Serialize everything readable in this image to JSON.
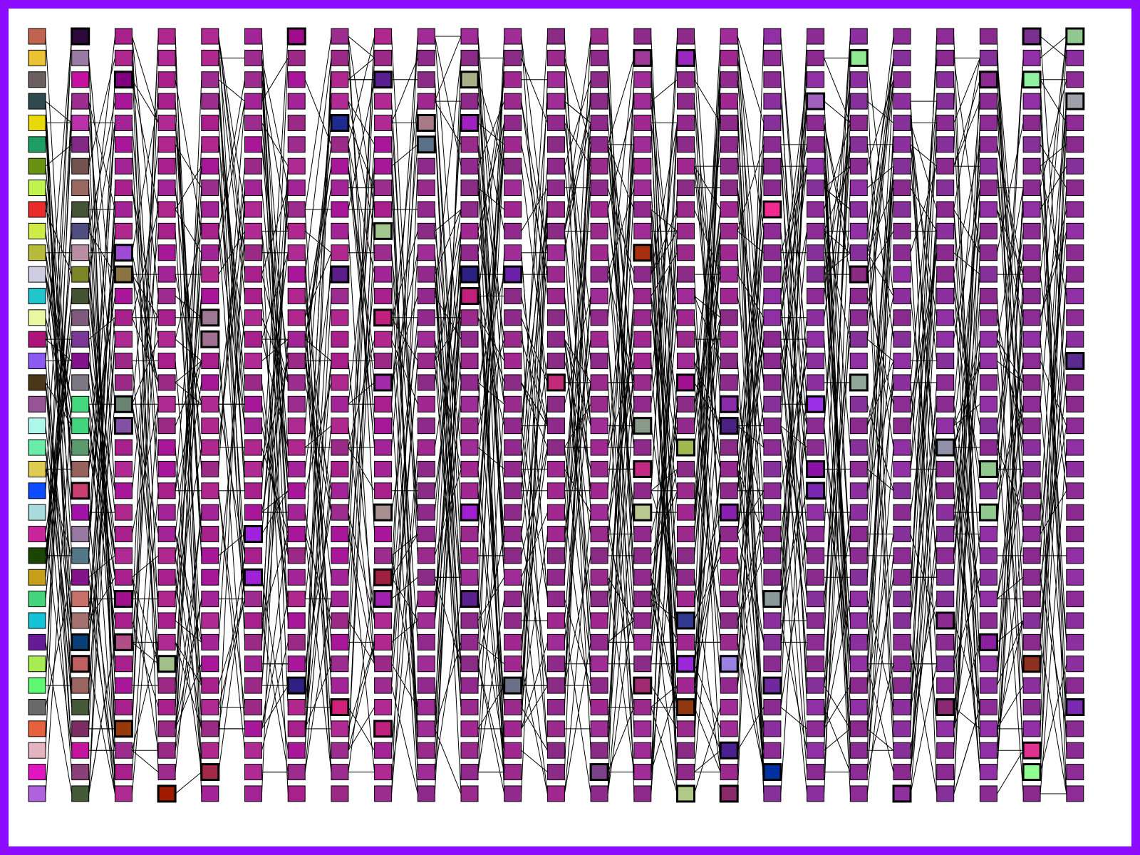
{
  "diagram": {
    "frame_color": "#8b0cff",
    "background": "#ffffff",
    "edge_color": "#000000",
    "column_count": 25,
    "row_count": 36,
    "columns": [
      {
        "colors": [
          "#c0634f",
          "#ecc235",
          "#6b5e5e",
          "#2f4a4e",
          "#e8da0a",
          "#1e9e62",
          "#6a9212",
          "#c2f44e",
          "#ea2b2c",
          "#cfeb46",
          "#b8bb3a",
          "#cecde2",
          "#20c6cc",
          "#e9f9a2",
          "#ad1479",
          "#8c5af0",
          "#4a3619",
          "#975396",
          "#aef7ea",
          "#68eca8",
          "#e0cb52",
          "#0e4cff",
          "#a9dbdc",
          "#c8249c",
          "#1b4504",
          "#c69f17",
          "#44d47b",
          "#14c3d6",
          "#661a96",
          "#a7ec52",
          "#5ff873",
          "#6a6868",
          "#e8613e",
          "#e3b4c0",
          "#e216c0",
          "#b061dd"
        ]
      },
      {
        "colors": [
          "#2e0a3a",
          "#977ba2",
          "#c510a0",
          "#9c2c8e",
          "#b932aa",
          "#832985",
          "#73524f",
          "#986861",
          "#455436",
          "#504d80",
          "#b98ea4",
          "#7d8529",
          "#455234",
          "#7e5b7d",
          "#7b3896",
          "#83148b",
          "#7b7882",
          "#44d67b",
          "#41d67d",
          "#5b9a6d",
          "#98625c",
          "#c93f72",
          "#a012a8",
          "#9678a0",
          "#537786",
          "#85148a",
          "#c8706a",
          "#a57070",
          "#093f77",
          "#bf6060",
          "#9a6460",
          "#455a39",
          "#7b2d64",
          "#c5159e",
          "#8a4078",
          "#455a39"
        ]
      }
    ],
    "generic_palette": {
      "early": [
        "#a8169a",
        "#a22496",
        "#b0288e",
        "#9c2c8e",
        "#a8208c",
        "#b02a94",
        "#9a2a86"
      ],
      "middle": [
        "#9a2a8c",
        "#8e2a8a",
        "#a02890",
        "#8a2c86",
        "#a02c98",
        "#922a8e"
      ],
      "late": [
        "#8e2c96",
        "#8a2c92",
        "#8c30a0",
        "#86309a",
        "#9030a4",
        "#8a2a8e"
      ]
    },
    "highlighted_cells": [
      {
        "col": 1,
        "row": 0,
        "color": "#2e0a3a"
      },
      {
        "col": 1,
        "row": 21,
        "color": "#c93f72"
      },
      {
        "col": 1,
        "row": 28,
        "color": "#093f77"
      },
      {
        "col": 1,
        "row": 29,
        "color": "#bf6060"
      },
      {
        "col": 2,
        "row": 2,
        "color": "#800080"
      },
      {
        "col": 2,
        "row": 10,
        "color": "#9e4bd4"
      },
      {
        "col": 2,
        "row": 11,
        "color": "#8a7444"
      },
      {
        "col": 2,
        "row": 17,
        "color": "#6a8370"
      },
      {
        "col": 2,
        "row": 18,
        "color": "#8450a6"
      },
      {
        "col": 2,
        "row": 26,
        "color": "#a0108e"
      },
      {
        "col": 2,
        "row": 28,
        "color": "#b04e86"
      },
      {
        "col": 2,
        "row": 32,
        "color": "#963a0c"
      },
      {
        "col": 3,
        "row": 29,
        "color": "#a2c08a"
      },
      {
        "col": 3,
        "row": 35,
        "color": "#a01a00"
      },
      {
        "col": 4,
        "row": 13,
        "color": "#9e7894"
      },
      {
        "col": 4,
        "row": 14,
        "color": "#a07090"
      },
      {
        "col": 4,
        "row": 34,
        "color": "#a02a48"
      },
      {
        "col": 5,
        "row": 23,
        "color": "#a020e0"
      },
      {
        "col": 5,
        "row": 25,
        "color": "#a022d8"
      },
      {
        "col": 6,
        "row": 0,
        "color": "#a00c8c"
      },
      {
        "col": 6,
        "row": 30,
        "color": "#302080"
      },
      {
        "col": 7,
        "row": 4,
        "color": "#1e2a8e"
      },
      {
        "col": 7,
        "row": 11,
        "color": "#5a1e8a"
      },
      {
        "col": 7,
        "row": 31,
        "color": "#d0207a"
      },
      {
        "col": 8,
        "row": 2,
        "color": "#5a2090"
      },
      {
        "col": 8,
        "row": 9,
        "color": "#a2c890"
      },
      {
        "col": 8,
        "row": 13,
        "color": "#c0207e"
      },
      {
        "col": 8,
        "row": 16,
        "color": "#a02aa8"
      },
      {
        "col": 8,
        "row": 22,
        "color": "#a89090"
      },
      {
        "col": 8,
        "row": 25,
        "color": "#a02040"
      },
      {
        "col": 8,
        "row": 26,
        "color": "#a020b0"
      },
      {
        "col": 8,
        "row": 32,
        "color": "#c0207e"
      },
      {
        "col": 9,
        "row": 4,
        "color": "#a87a88"
      },
      {
        "col": 9,
        "row": 5,
        "color": "#5a7088"
      },
      {
        "col": 10,
        "row": 2,
        "color": "#a8b088"
      },
      {
        "col": 10,
        "row": 4,
        "color": "#a020c0"
      },
      {
        "col": 10,
        "row": 11,
        "color": "#2a2080"
      },
      {
        "col": 10,
        "row": 12,
        "color": "#c0207a"
      },
      {
        "col": 10,
        "row": 22,
        "color": "#a020d0"
      },
      {
        "col": 10,
        "row": 26,
        "color": "#5a2090"
      },
      {
        "col": 11,
        "row": 11,
        "color": "#6a20a8"
      },
      {
        "col": 11,
        "row": 30,
        "color": "#6a7088"
      },
      {
        "col": 12,
        "row": 16,
        "color": "#c02878"
      },
      {
        "col": 13,
        "row": 34,
        "color": "#7a4088"
      },
      {
        "col": 14,
        "row": 1,
        "color": "#a03a98"
      },
      {
        "col": 14,
        "row": 10,
        "color": "#a83010"
      },
      {
        "col": 14,
        "row": 18,
        "color": "#8a9a88"
      },
      {
        "col": 14,
        "row": 20,
        "color": "#c02a80"
      },
      {
        "col": 14,
        "row": 22,
        "color": "#b8c890"
      },
      {
        "col": 14,
        "row": 30,
        "color": "#a02a70"
      },
      {
        "col": 15,
        "row": 1,
        "color": "#9a28c0"
      },
      {
        "col": 15,
        "row": 16,
        "color": "#a01090"
      },
      {
        "col": 15,
        "row": 19,
        "color": "#a0b850"
      },
      {
        "col": 15,
        "row": 27,
        "color": "#303890"
      },
      {
        "col": 15,
        "row": 29,
        "color": "#9a28d8"
      },
      {
        "col": 15,
        "row": 31,
        "color": "#903810"
      },
      {
        "col": 15,
        "row": 35,
        "color": "#b0c888"
      },
      {
        "col": 16,
        "row": 17,
        "color": "#8a2aa8"
      },
      {
        "col": 16,
        "row": 18,
        "color": "#4a2080"
      },
      {
        "col": 16,
        "row": 22,
        "color": "#8a20b0"
      },
      {
        "col": 16,
        "row": 29,
        "color": "#9a80e0"
      },
      {
        "col": 16,
        "row": 33,
        "color": "#4a2090"
      },
      {
        "col": 16,
        "row": 35,
        "color": "#8a2a6a"
      },
      {
        "col": 17,
        "row": 8,
        "color": "#f02a90"
      },
      {
        "col": 17,
        "row": 26,
        "color": "#8a9898"
      },
      {
        "col": 17,
        "row": 30,
        "color": "#7028a0"
      },
      {
        "col": 17,
        "row": 34,
        "color": "#0030a0"
      },
      {
        "col": 18,
        "row": 3,
        "color": "#a060c0"
      },
      {
        "col": 18,
        "row": 17,
        "color": "#9a30e8"
      },
      {
        "col": 18,
        "row": 20,
        "color": "#8a10a8"
      },
      {
        "col": 18,
        "row": 21,
        "color": "#7a28b0"
      },
      {
        "col": 19,
        "row": 1,
        "color": "#90e890"
      },
      {
        "col": 19,
        "row": 11,
        "color": "#8a2a80"
      },
      {
        "col": 19,
        "row": 16,
        "color": "#90a898"
      },
      {
        "col": 20,
        "row": 35,
        "color": "#9030a0"
      },
      {
        "col": 21,
        "row": 19,
        "color": "#9090a8"
      },
      {
        "col": 21,
        "row": 27,
        "color": "#8a2a90"
      },
      {
        "col": 21,
        "row": 31,
        "color": "#8a2a70"
      },
      {
        "col": 22,
        "row": 2,
        "color": "#8a2a90"
      },
      {
        "col": 22,
        "row": 20,
        "color": "#90c890"
      },
      {
        "col": 22,
        "row": 22,
        "color": "#90c890"
      },
      {
        "col": 22,
        "row": 28,
        "color": "#8a20a0"
      },
      {
        "col": 23,
        "row": 0,
        "color": "#7a3090"
      },
      {
        "col": 23,
        "row": 2,
        "color": "#90f0a0"
      },
      {
        "col": 23,
        "row": 29,
        "color": "#903020"
      },
      {
        "col": 23,
        "row": 33,
        "color": "#e03090"
      },
      {
        "col": 23,
        "row": 34,
        "color": "#90ff90"
      },
      {
        "col": 24,
        "row": 0,
        "color": "#90c890"
      },
      {
        "col": 24,
        "row": 3,
        "color": "#a0a0a8"
      },
      {
        "col": 24,
        "row": 15,
        "color": "#5a2a90"
      },
      {
        "col": 24,
        "row": 31,
        "color": "#7a2ab0"
      }
    ]
  }
}
